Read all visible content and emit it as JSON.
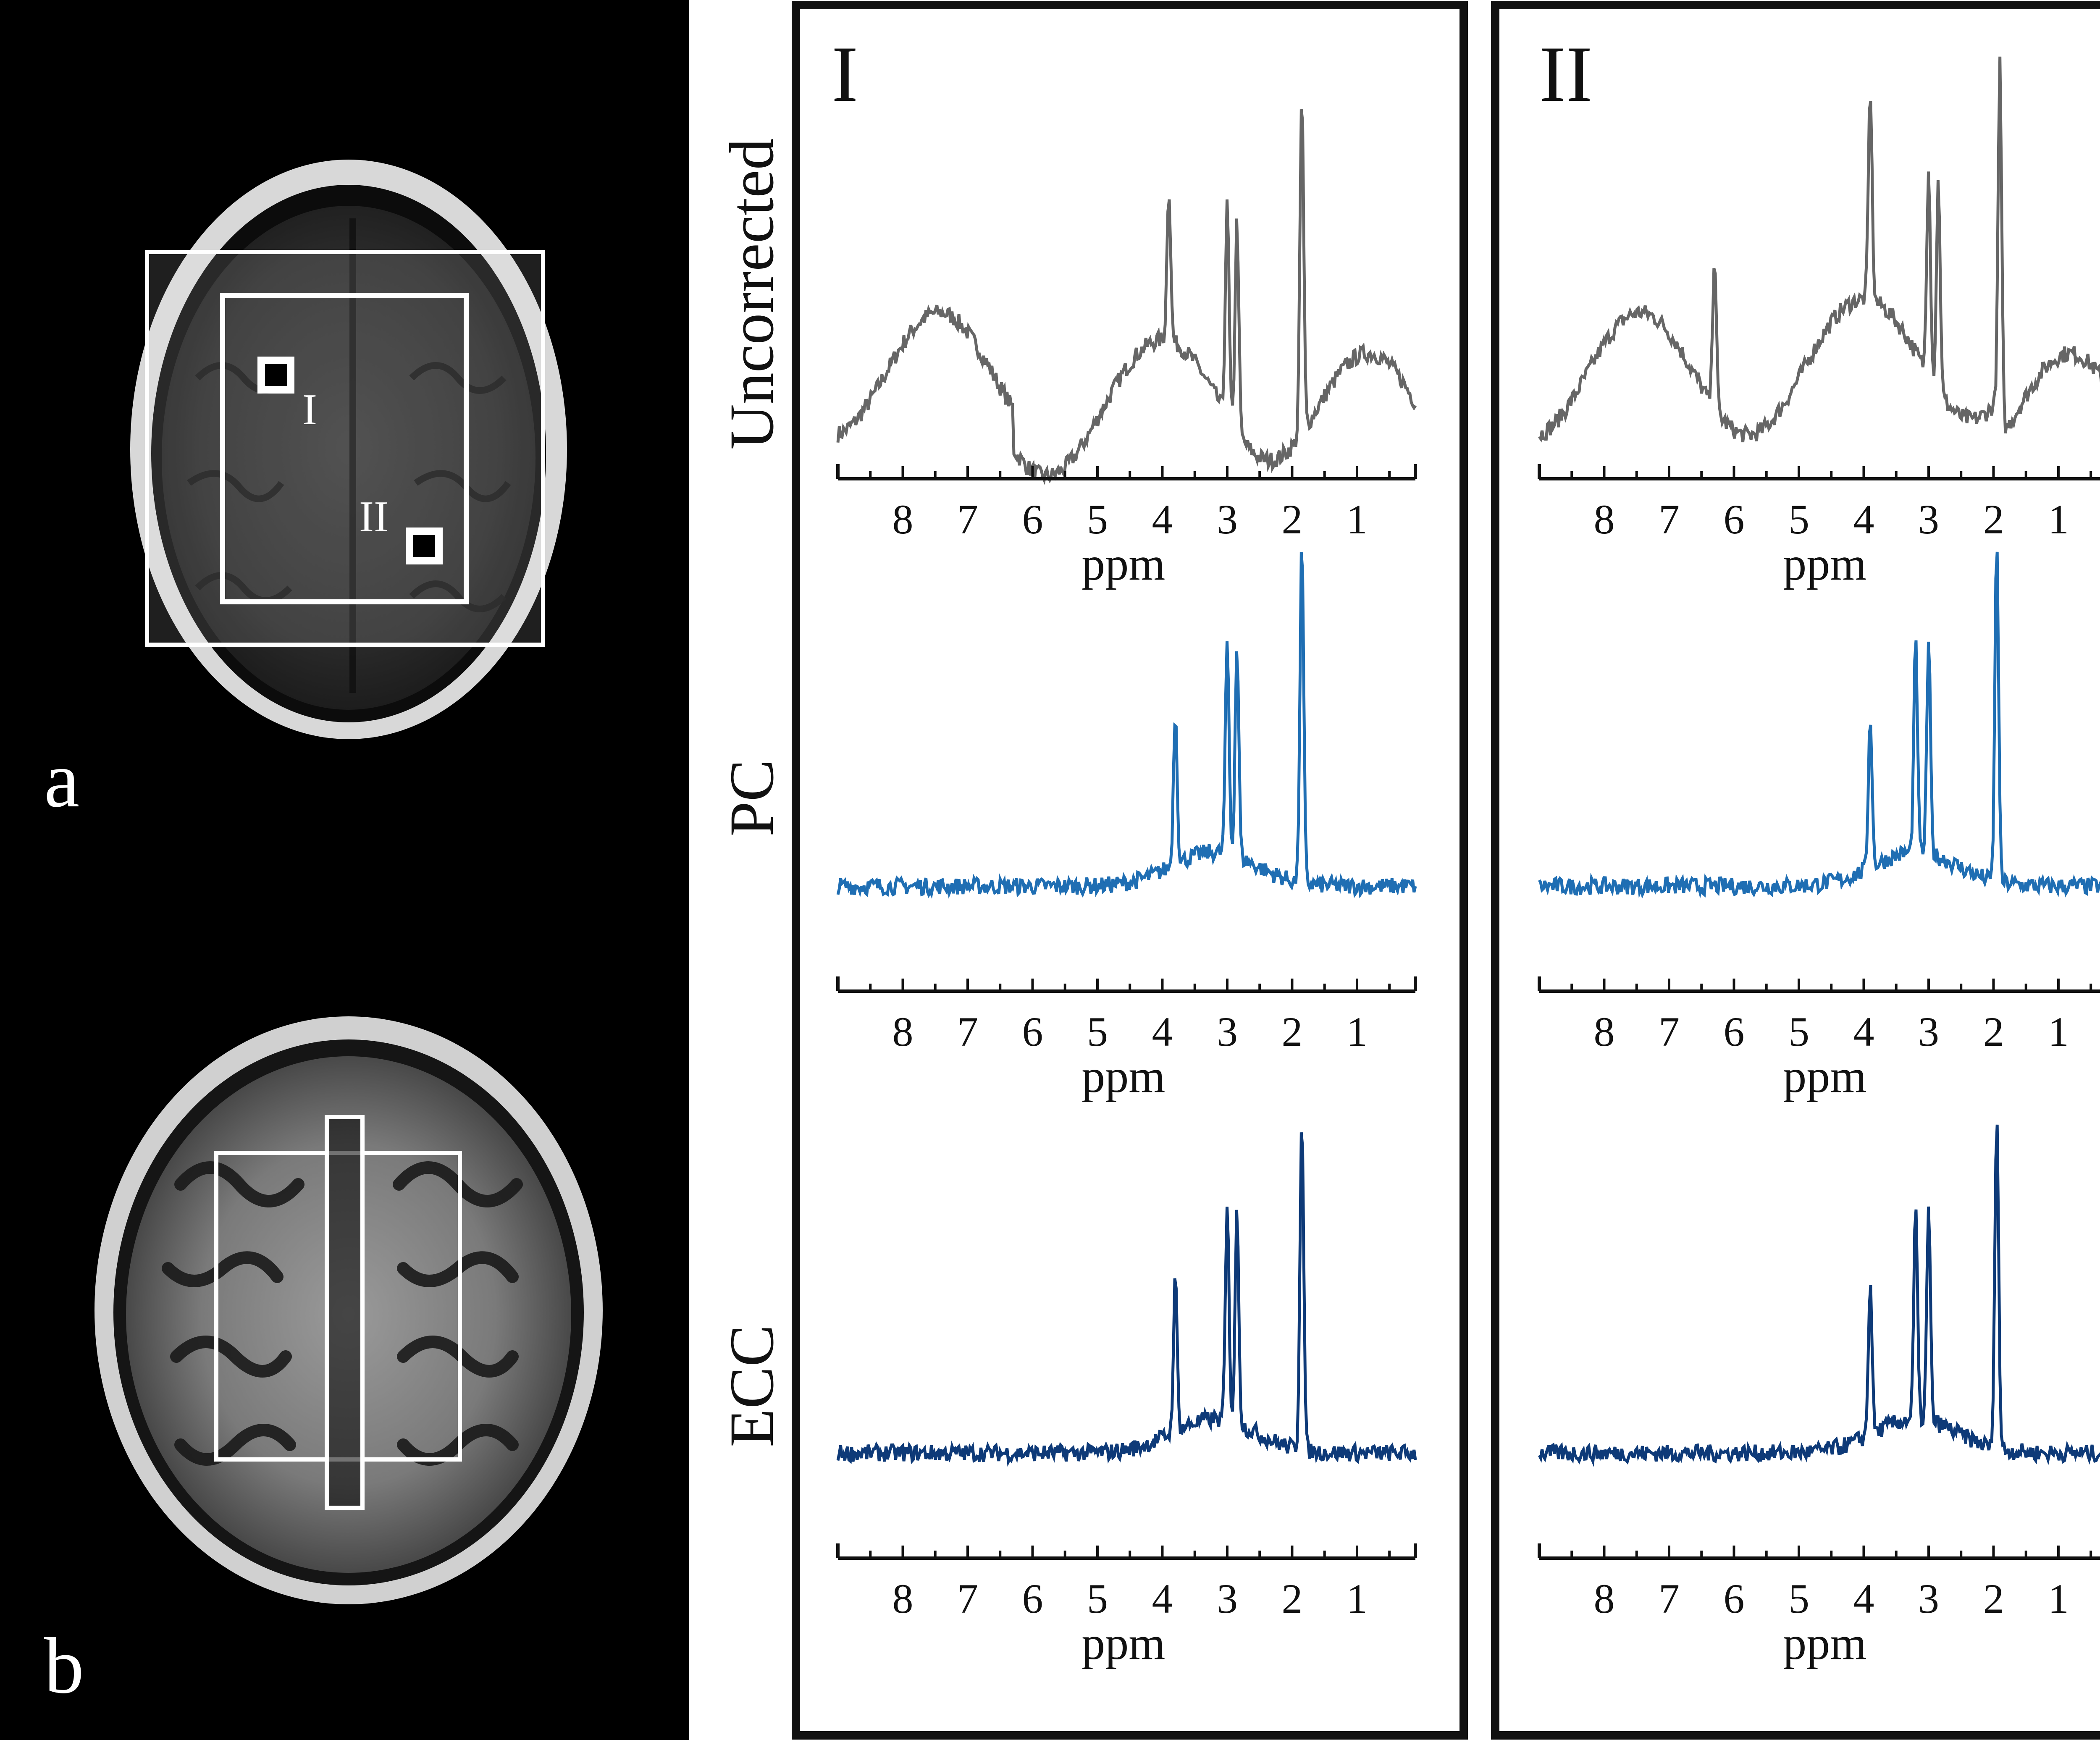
{
  "mri": {
    "panel_a_label": "a",
    "panel_b_label": "b",
    "roi_labels": [
      "I",
      "II"
    ]
  },
  "columns": [
    {
      "label": "I"
    },
    {
      "label": "II"
    }
  ],
  "rows": [
    {
      "label": "Uncorrected",
      "color": "#666666"
    },
    {
      "label": "PC",
      "color": "#1f6eb3"
    },
    {
      "label": "ECC",
      "color": "#0e3a78"
    }
  ],
  "axis": {
    "title": "ppm",
    "ticks": [
      "8",
      "7",
      "6",
      "5",
      "4",
      "3",
      "2",
      "1"
    ],
    "range": [
      9.0,
      0.1
    ],
    "reversed": true
  },
  "chart_data": [
    {
      "type": "line",
      "column": "I",
      "row": "Uncorrected",
      "xlabel": "ppm",
      "xlim": [
        9.0,
        0.1
      ],
      "series": [
        {
          "peaks_ppm": [
            3.9,
            3.0,
            2.85,
            1.85
          ],
          "baseline_step_ppm": 6.3
        }
      ]
    },
    {
      "type": "line",
      "column": "II",
      "row": "Uncorrected",
      "xlabel": "ppm",
      "xlim": [
        9.0,
        0.1
      ],
      "series": [
        {
          "peaks_ppm": [
            6.3,
            3.9,
            3.0,
            2.85,
            1.9
          ],
          "baseline_step_ppm": 1.9
        }
      ]
    },
    {
      "type": "line",
      "column": "I",
      "row": "PC",
      "xlabel": "ppm",
      "xlim": [
        9.0,
        0.1
      ],
      "series": [
        {
          "peaks_ppm": [
            3.8,
            3.0,
            2.85,
            1.85
          ]
        }
      ]
    },
    {
      "type": "line",
      "column": "II",
      "row": "PC",
      "xlabel": "ppm",
      "xlim": [
        9.0,
        0.1
      ],
      "series": [
        {
          "peaks_ppm": [
            3.9,
            3.2,
            3.0,
            1.95
          ]
        }
      ]
    },
    {
      "type": "line",
      "column": "I",
      "row": "ECC",
      "xlabel": "ppm",
      "xlim": [
        9.0,
        0.1
      ],
      "series": [
        {
          "peaks_ppm": [
            3.8,
            3.0,
            2.85,
            1.85
          ]
        }
      ]
    },
    {
      "type": "line",
      "column": "II",
      "row": "ECC",
      "xlabel": "ppm",
      "xlim": [
        9.0,
        0.1
      ],
      "series": [
        {
          "peaks_ppm": [
            3.9,
            3.2,
            3.0,
            1.95
          ]
        }
      ]
    }
  ]
}
